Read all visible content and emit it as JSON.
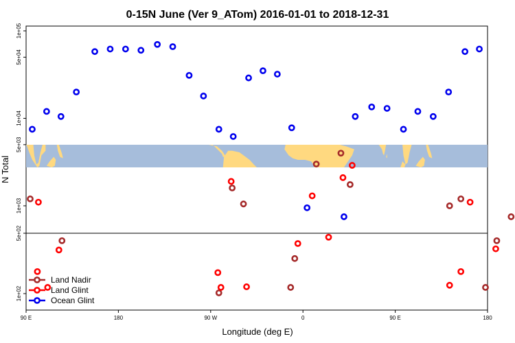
{
  "chart_data": {
    "type": "scatter",
    "title": "0-15N June (Ver 9_ATom)   2016-01-01 to 2018-12-31",
    "xlabel": "Longitude (deg E)",
    "ylabel": "N Total",
    "x_ticks": [
      {
        "value": 90,
        "label": "90 E"
      },
      {
        "value": 180,
        "label": "180"
      },
      {
        "value": 270,
        "label": "90 W"
      },
      {
        "value": 360,
        "label": "0"
      },
      {
        "value": 450,
        "label": "90 E"
      },
      {
        "value": 540,
        "label": "180"
      }
    ],
    "xlim": [
      90,
      540
    ],
    "y_scale": "log",
    "y_ticks": [
      {
        "value": 100,
        "label": "1e+02"
      },
      {
        "value": 500,
        "label": "5e+02"
      },
      {
        "value": 1000,
        "label": "1e+03"
      },
      {
        "value": 5000,
        "label": "5e+03"
      },
      {
        "value": 10000,
        "label": "1e+04"
      },
      {
        "value": 50000,
        "label": "5e+04"
      },
      {
        "value": 100000,
        "label": "1e+05"
      }
    ],
    "map_strip": {
      "lon_range": [
        90,
        540
      ],
      "lat_range": [
        0,
        15
      ],
      "land_color": "#ffd980",
      "ocean_color": "#a6bddb"
    },
    "legend_position": "bottom-left",
    "series": [
      {
        "name": "Land Nadir",
        "color": "#a52a2a",
        "points": [
          {
            "x": 94,
            "y": 1200
          },
          {
            "x": 125,
            "y": 410
          },
          {
            "x": 278,
            "y": 102
          },
          {
            "x": 291,
            "y": 1600
          },
          {
            "x": 302,
            "y": 1050
          },
          {
            "x": 348,
            "y": 118
          },
          {
            "x": 352,
            "y": 255
          },
          {
            "x": 373,
            "y": 3000
          },
          {
            "x": 397,
            "y": 4000
          },
          {
            "x": 406,
            "y": 1750
          },
          {
            "x": 503,
            "y": 1000
          },
          {
            "x": 514,
            "y": 1200
          },
          {
            "x": 538,
            "y": 118
          },
          {
            "x": 549,
            "y": 410
          },
          {
            "x": 563,
            "y": 750
          }
        ]
      },
      {
        "name": "Land Glint",
        "color": "#ff0000",
        "points": [
          {
            "x": 101,
            "y": 180
          },
          {
            "x": 102,
            "y": 1100
          },
          {
            "x": 111,
            "y": 118
          },
          {
            "x": 122,
            "y": 320
          },
          {
            "x": 277,
            "y": 175
          },
          {
            "x": 280,
            "y": 118
          },
          {
            "x": 290,
            "y": 1900
          },
          {
            "x": 305,
            "y": 120
          },
          {
            "x": 355,
            "y": 380
          },
          {
            "x": 369,
            "y": 1300
          },
          {
            "x": 385,
            "y": 450
          },
          {
            "x": 399,
            "y": 2100
          },
          {
            "x": 408,
            "y": 2900
          },
          {
            "x": 503,
            "y": 125
          },
          {
            "x": 514,
            "y": 180
          },
          {
            "x": 523,
            "y": 1100
          },
          {
            "x": 548,
            "y": 330
          }
        ]
      },
      {
        "name": "Ocean Glint",
        "color": "#0000ee",
        "points": [
          {
            "x": 96,
            "y": 7500
          },
          {
            "x": 110,
            "y": 12000
          },
          {
            "x": 124,
            "y": 10500
          },
          {
            "x": 139,
            "y": 20000
          },
          {
            "x": 157,
            "y": 58000
          },
          {
            "x": 172,
            "y": 62000
          },
          {
            "x": 187,
            "y": 62000
          },
          {
            "x": 202,
            "y": 60000
          },
          {
            "x": 218,
            "y": 70000
          },
          {
            "x": 233,
            "y": 66000
          },
          {
            "x": 249,
            "y": 31000
          },
          {
            "x": 263,
            "y": 18000
          },
          {
            "x": 278,
            "y": 7500
          },
          {
            "x": 292,
            "y": 6200
          },
          {
            "x": 307,
            "y": 29000
          },
          {
            "x": 321,
            "y": 35000
          },
          {
            "x": 335,
            "y": 32000
          },
          {
            "x": 349,
            "y": 7800
          },
          {
            "x": 364,
            "y": 950
          },
          {
            "x": 400,
            "y": 750
          },
          {
            "x": 411,
            "y": 10500
          },
          {
            "x": 427,
            "y": 13500
          },
          {
            "x": 442,
            "y": 13000
          },
          {
            "x": 458,
            "y": 7500
          },
          {
            "x": 472,
            "y": 12000
          },
          {
            "x": 487,
            "y": 10500
          },
          {
            "x": 502,
            "y": 20000
          },
          {
            "x": 518,
            "y": 58000
          },
          {
            "x": 532,
            "y": 62000
          }
        ]
      }
    ]
  }
}
